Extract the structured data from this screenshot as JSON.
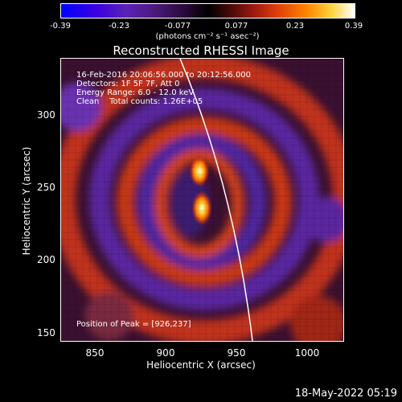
{
  "colorbar": {
    "ticks": [
      "-0.39",
      "-0.23",
      "-0.077",
      "0.077",
      "0.23",
      "0.39"
    ],
    "unit": "(photons cm⁻² s⁻¹ asec⁻²)"
  },
  "title": "Reconstructed RHESSI Image",
  "info": {
    "time": "16-Feb-2016 20:06:56.000 to 20:12:56.000",
    "detectors": "Detectors: 1F 5F 7F, Att 0",
    "energy": "Energy Range: 6.0 - 12.0 keV",
    "clean": "Clean    Total counts: 1.26E+05",
    "peak": "Position of Peak = [926,237]"
  },
  "axes": {
    "xlabel": "Heliocentric X (arcsec)",
    "ylabel": "Heliocentric Y (arcsec)",
    "xticks": [
      "850",
      "900",
      "950",
      "1000"
    ],
    "yticks": [
      "300",
      "250",
      "200",
      "150"
    ]
  },
  "timestamp": "18-May-2022 05:19"
}
